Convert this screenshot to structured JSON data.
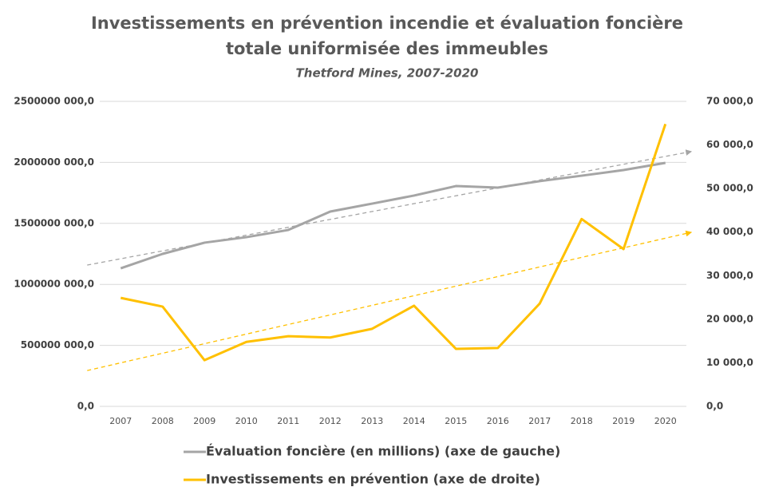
{
  "chart_data": {
    "type": "line",
    "title": [
      "Investissements en prévention incendie et évaluation foncière",
      "totale uniformisée des immeubles"
    ],
    "subtitle": "Thetford Mines, 2007-2020",
    "categories": [
      "2007",
      "2008",
      "2009",
      "2010",
      "2011",
      "2012",
      "2013",
      "2014",
      "2015",
      "2016",
      "2017",
      "2018",
      "2019",
      "2020"
    ],
    "series": [
      {
        "name": "Évaluation foncière (en millions) (axe de gauche)",
        "color": "#a5a5a5",
        "axis": "y",
        "values": [
          1132000000,
          1250000000,
          1342000000,
          1387000000,
          1446000000,
          1597000000,
          1662000000,
          1728000000,
          1806000000,
          1793000000,
          1846000000,
          1891000000,
          1937000000,
          1996000000
        ]
      },
      {
        "name": "Investissements en prévention (axe de droite)",
        "color": "#ffc000",
        "axis": "y2",
        "values": [
          24900,
          22900,
          10600,
          14800,
          16100,
          15800,
          17800,
          23100,
          13200,
          13400,
          23600,
          43000,
          36100,
          64800
        ]
      }
    ],
    "ylim": [
      0,
      2500000000
    ],
    "yticks": [
      {
        "value": 0,
        "label": "0,0"
      },
      {
        "value": 500000000,
        "label": "500000 000,0"
      },
      {
        "value": 1000000000,
        "label": "1000000 000,0"
      },
      {
        "value": 1500000000,
        "label": "1500000 000,0"
      },
      {
        "value": 2000000000,
        "label": "2000000 000,0"
      },
      {
        "value": 2500000000,
        "label": "2500000 000,0"
      }
    ],
    "y2lim": [
      0,
      70000
    ],
    "y2ticks": [
      {
        "value": 0,
        "label": "0,0"
      },
      {
        "value": 10000,
        "label": "10 000,0"
      },
      {
        "value": 20000,
        "label": "20 000,0"
      },
      {
        "value": 30000,
        "label": "30 000,0"
      },
      {
        "value": 40000,
        "label": "40 000,0"
      },
      {
        "value": 50000,
        "label": "50 000,0"
      },
      {
        "value": 60000,
        "label": "60 000,0"
      },
      {
        "value": 70000,
        "label": "70 000,0"
      }
    ],
    "grid": true,
    "trendline": true,
    "legend": "bottom"
  }
}
